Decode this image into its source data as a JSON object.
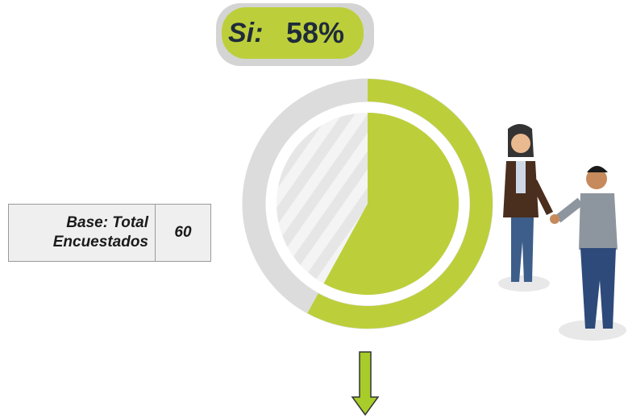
{
  "chart_data": {
    "type": "donut",
    "label": "Si:",
    "value": 58,
    "value_label": "58%",
    "color": "#bccf3a",
    "base_label": "Base: Total Encuestados",
    "base_value": 60
  }
}
